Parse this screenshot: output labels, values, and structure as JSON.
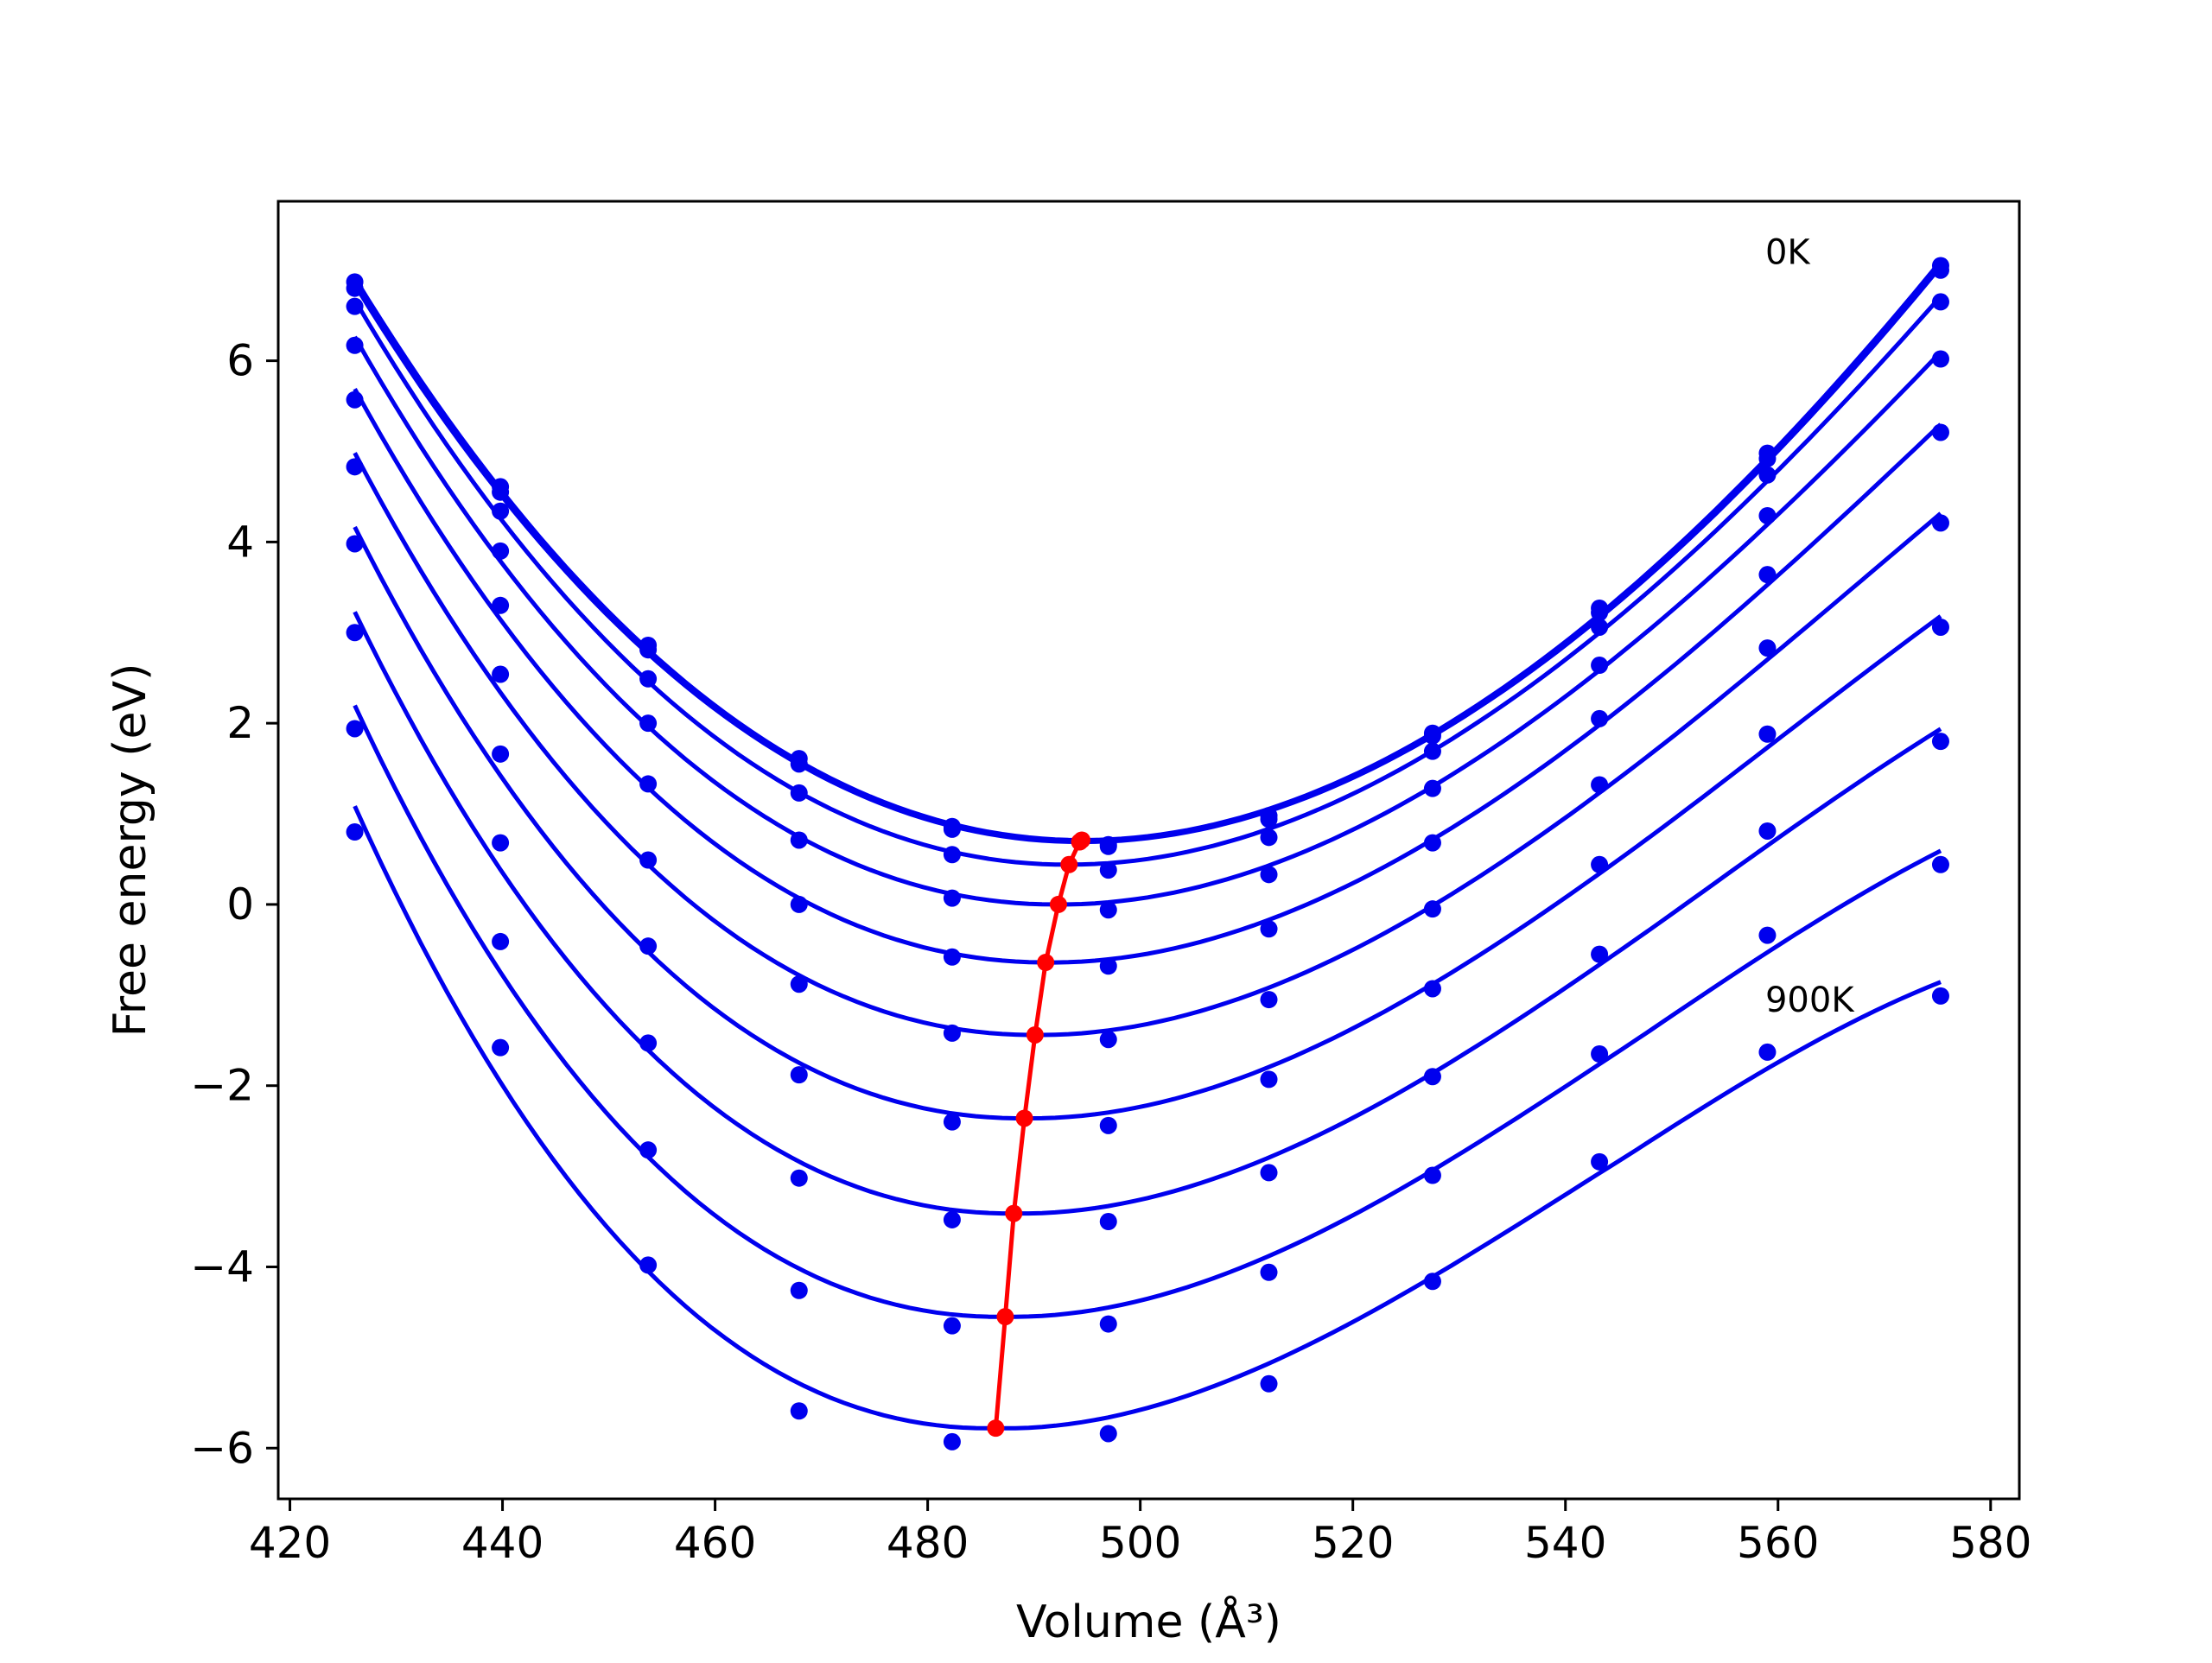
{
  "chart_data": {
    "type": "scatter",
    "title": "",
    "xlabel": "Volume",
    "xlabel_unit": "(Å³)",
    "ylabel": "Free energy (eV)",
    "xlim": [
      418.9,
      582.7
    ],
    "ylim": [
      -6.56,
      7.76
    ],
    "xticks": [
      420,
      440,
      460,
      480,
      500,
      520,
      540,
      560,
      580
    ],
    "yticks": [
      -6,
      -4,
      -2,
      0,
      2,
      4,
      6
    ],
    "ytick_labels": [
      "−6",
      "−4",
      "−2",
      "0",
      "2",
      "4",
      "6"
    ],
    "grid": false,
    "legend": "none",
    "annotations": [
      {
        "text": "0K",
        "x": 558.8,
        "y": 7.2
      },
      {
        "text": "900K",
        "x": 558.8,
        "y": -1.05
      }
    ],
    "x": [
      426.1,
      439.8,
      453.7,
      467.9,
      482.3,
      497.0,
      512.1,
      527.5,
      543.2,
      559.0,
      575.3
    ],
    "series": [
      {
        "values": [
          6.87,
          4.61,
          2.86,
          1.61,
          0.86,
          0.66,
          0.98,
          1.89,
          3.27,
          4.98,
          7.05
        ]
      },
      {
        "values": [
          6.8,
          4.55,
          2.81,
          1.55,
          0.83,
          0.64,
          0.94,
          1.86,
          3.22,
          4.92,
          7.0
        ]
      },
      {
        "values": [
          6.6,
          4.34,
          2.49,
          1.23,
          0.55,
          0.38,
          0.74,
          1.69,
          3.06,
          4.74,
          6.65
        ]
      },
      {
        "values": [
          6.17,
          3.9,
          2.0,
          0.71,
          0.07,
          -0.06,
          0.33,
          1.28,
          2.64,
          4.29,
          6.02
        ]
      },
      {
        "values": [
          5.57,
          3.3,
          1.33,
          0.0,
          -0.58,
          -0.68,
          -0.27,
          0.68,
          2.05,
          3.64,
          5.21
        ]
      },
      {
        "values": [
          4.83,
          2.54,
          0.49,
          -0.88,
          -1.42,
          -1.49,
          -1.05,
          -0.05,
          1.32,
          2.83,
          4.21
        ]
      },
      {
        "values": [
          3.98,
          1.66,
          -0.46,
          -1.88,
          -2.4,
          -2.44,
          -1.93,
          -0.93,
          0.44,
          1.88,
          3.06
        ]
      },
      {
        "values": [
          3.0,
          0.68,
          -1.53,
          -3.02,
          -3.48,
          -3.5,
          -2.96,
          -1.9,
          -0.55,
          0.81,
          1.8
        ]
      },
      {
        "values": [
          1.94,
          -0.41,
          -2.71,
          -4.26,
          -4.65,
          -4.63,
          -4.06,
          -2.99,
          -1.65,
          -0.34,
          0.44
        ]
      },
      {
        "values": [
          0.8,
          -1.58,
          -3.98,
          -5.59,
          -5.93,
          -5.84,
          -5.29,
          -4.16,
          -2.84,
          -1.63,
          -1.01
        ]
      }
    ],
    "fit_curves": {
      "color": "#0000ee",
      "note_x_range": [
        426.1,
        575.3
      ],
      "curves": [
        {
          "min_x": 494.5,
          "min_y": 0.71
        },
        {
          "min_x": 494.3,
          "min_y": 0.69
        },
        {
          "min_x": 493.3,
          "min_y": 0.44
        },
        {
          "min_x": 492.3,
          "min_y": 0.0
        },
        {
          "min_x": 491.1,
          "min_y": -0.64
        },
        {
          "min_x": 490.1,
          "min_y": -1.44
        },
        {
          "min_x": 489.1,
          "min_y": -2.36
        },
        {
          "min_x": 488.1,
          "min_y": -3.41
        },
        {
          "min_x": 487.3,
          "min_y": -4.55
        },
        {
          "min_x": 486.4,
          "min_y": -5.78
        }
      ]
    },
    "minimum_path": {
      "color": "#ff0000",
      "x": [
        494.5,
        494.3,
        493.3,
        492.3,
        491.1,
        490.1,
        489.1,
        488.1,
        487.3,
        486.4
      ],
      "y": [
        0.71,
        0.69,
        0.44,
        0.0,
        -0.64,
        -1.44,
        -2.36,
        -3.41,
        -4.55,
        -5.78
      ]
    },
    "point_color": "#0000ee"
  }
}
